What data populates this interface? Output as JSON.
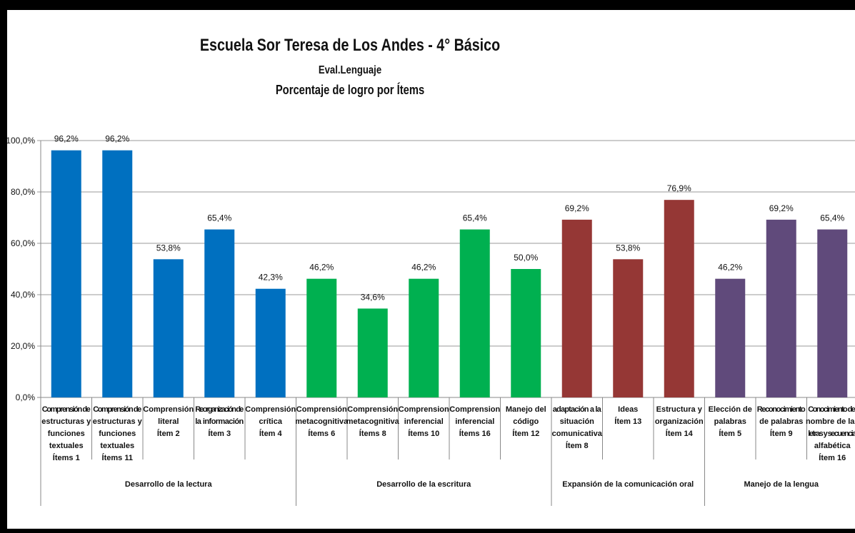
{
  "chart_data": {
    "type": "bar",
    "title": "Escuela Sor Teresa de Los Andes - 4° Básico",
    "subtitle": "Eval.Lenguaje",
    "subtitle2": "Porcentaje de logro por Ítems",
    "ylim": [
      0,
      100
    ],
    "yticks": [
      "0,0%",
      "20,0%",
      "40,0%",
      "60,0%",
      "80,0%",
      "100,0%"
    ],
    "grid": true,
    "groups": [
      {
        "name": "Desarrollo de la lectura",
        "color": "#0070C0",
        "count": 5
      },
      {
        "name": "Desarrollo de la escritura",
        "color": "#00B050",
        "count": 5
      },
      {
        "name": "Expansión de la comunicación  oral",
        "color": "#953735",
        "count": 3
      },
      {
        "name": "Manejo de la lengua",
        "color": "#604A7B",
        "count": 3
      }
    ],
    "categories": [
      [
        "Comprensión de",
        "estructuras y",
        "funciones",
        "textuales",
        "Ítems 1"
      ],
      [
        "Comprensión de",
        "estructuras y",
        "funciones",
        "textuales",
        "Ítems 11"
      ],
      [
        "Comprensión",
        "literal",
        "Ítem 2"
      ],
      [
        "Reorganización de",
        "la información",
        "Ítem 3"
      ],
      [
        "Comprensión",
        "crítica",
        "Ítem 4"
      ],
      [
        "Comprensión",
        "metacognitiva",
        "Ítems 6"
      ],
      [
        "Comprensión",
        "metacognitiva",
        "Ítems 8"
      ],
      [
        "Comprension",
        "inferencial",
        "Ítems 10"
      ],
      [
        "Comprension",
        "inferencial",
        "Ítems 16"
      ],
      [
        "Manejo del",
        "código",
        "Ítem 12"
      ],
      [
        "adaptación a la",
        "situación",
        "comunicativa",
        "Ítem 8"
      ],
      [
        "Ideas",
        "Ítem 13"
      ],
      [
        "Estructura y",
        "organización",
        "Ítem 14"
      ],
      [
        "Elección de",
        "palabras",
        "Ítem 5"
      ],
      [
        "Reconocimiento",
        "de palabras",
        "Ítem 9"
      ],
      [
        "Conocimiento del",
        "nombre de las",
        "letras y secuencia",
        "alfabética",
        "Ítem 16"
      ]
    ],
    "values": [
      96.2,
      96.2,
      53.8,
      65.4,
      42.3,
      46.2,
      34.6,
      46.2,
      65.4,
      50.0,
      69.2,
      53.8,
      76.9,
      46.2,
      69.2,
      65.4
    ],
    "data_labels": [
      "96,2%",
      "96,2%",
      "53,8%",
      "65,4%",
      "42,3%",
      "46,2%",
      "34,6%",
      "46,2%",
      "65,4%",
      "50,0%",
      "69,2%",
      "53,8%",
      "76,9%",
      "46,2%",
      "69,2%",
      "65,4%"
    ]
  }
}
